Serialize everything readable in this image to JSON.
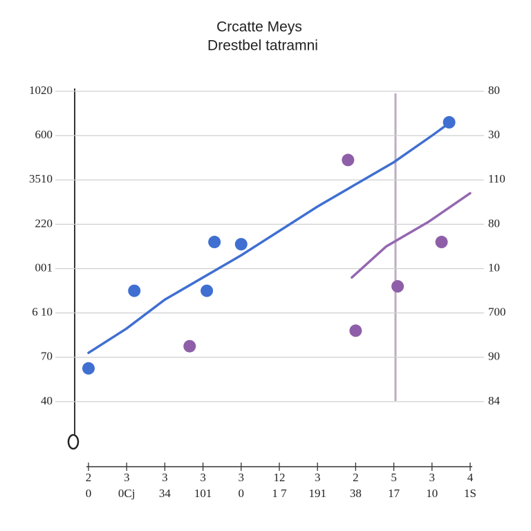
{
  "chart_data": {
    "type": "line",
    "title": "Crcatte Meys",
    "subtitle": "Drestbel tatramni",
    "xlim": [
      0,
      10
    ],
    "xticks": [
      {
        "value": 0,
        "label": "0"
      },
      {
        "value": 1,
        "label": "0Cj"
      },
      {
        "value": 2,
        "label": "34"
      },
      {
        "value": 3,
        "label": "101"
      },
      {
        "value": 4,
        "label": "0"
      },
      {
        "value": 5,
        "label": "1 7"
      },
      {
        "value": 6,
        "label": "191"
      },
      {
        "value": 7,
        "label": "38"
      },
      {
        "value": 8,
        "label": "17"
      },
      {
        "value": 9,
        "label": "10"
      },
      {
        "value": 10,
        "label": "1S"
      }
    ],
    "x_top_labels": [
      "2",
      "3",
      "3",
      "3",
      "3",
      "12",
      "3",
      "2",
      "5",
      "3",
      "4"
    ],
    "ylim": [
      0,
      8
    ],
    "yticks": [
      {
        "value": 1,
        "label": "40"
      },
      {
        "value": 2,
        "label": "70"
      },
      {
        "value": 3,
        "label": "6 10"
      },
      {
        "value": 4,
        "label": "001"
      },
      {
        "value": 5,
        "label": "220"
      },
      {
        "value": 6,
        "label": "3510"
      },
      {
        "value": 7,
        "label": "600"
      },
      {
        "value": 8,
        "label": "1020"
      }
    ],
    "y2lim": [
      0,
      8
    ],
    "y2ticks": [
      {
        "value": 1,
        "label": "84"
      },
      {
        "value": 2,
        "label": "90"
      },
      {
        "value": 3,
        "label": "700"
      },
      {
        "value": 4,
        "label": "10"
      },
      {
        "value": 5,
        "label": "80"
      },
      {
        "value": 6,
        "label": "110"
      },
      {
        "value": 7,
        "label": "30"
      },
      {
        "value": 8,
        "label": "80"
      }
    ],
    "grid": true,
    "series": [
      {
        "mode": "line",
        "color": "#3f6fd1",
        "axis": "y",
        "x": [
          0,
          1,
          2,
          3,
          4,
          5,
          6,
          7,
          8,
          9,
          9.4
        ],
        "values": [
          2.1,
          2.65,
          3.3,
          3.8,
          4.3,
          4.85,
          5.4,
          5.9,
          6.4,
          7.0,
          7.25
        ]
      },
      {
        "mode": "line",
        "color": "#9467b0",
        "axis": "y2",
        "x": [
          6.9,
          7.8,
          8.9,
          10
        ],
        "values": [
          3.8,
          4.5,
          5.05,
          5.7
        ]
      },
      {
        "mode": "markers",
        "color": "#3f6fd1",
        "axis": "y",
        "x": [
          0,
          1.2,
          3.1,
          3.3,
          4.0,
          9.45
        ],
        "values": [
          1.75,
          3.5,
          3.5,
          4.6,
          4.55,
          7.3
        ]
      },
      {
        "mode": "markers",
        "color": "#8e5fa8",
        "axis": "y2",
        "x": [
          2.65,
          6.8,
          7.0,
          8.1,
          9.25
        ],
        "values": [
          2.25,
          6.45,
          2.6,
          3.6,
          4.6
        ]
      }
    ]
  }
}
